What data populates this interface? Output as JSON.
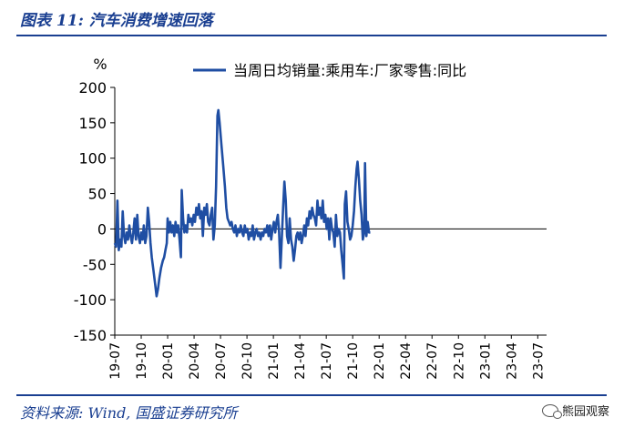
{
  "header": {
    "title": "图表 11:  汽车消费增速回落"
  },
  "footer": {
    "source": "资料来源:  Wind,  国盛证券研究所",
    "watermark": "熊园观察"
  },
  "chart_data": {
    "type": "line",
    "ylabel": "%",
    "ylim": [
      -150,
      200
    ],
    "yticks": [
      "200",
      "150",
      "100",
      "50",
      "0",
      "-50",
      "-100",
      "-150"
    ],
    "xticks": [
      "19-07",
      "19-10",
      "20-01",
      "20-04",
      "20-07",
      "20-10",
      "21-01",
      "21-04",
      "21-07",
      "21-10",
      "22-01",
      "22-04",
      "22-07",
      "22-10",
      "23-01",
      "23-04",
      "23-07"
    ],
    "x_range_months": [
      "19-07",
      "23-08"
    ],
    "series": [
      {
        "name": "当周日均销量:乘用车:厂家零售:同比",
        "color": "#1f4ea3",
        "points": [
          [
            0,
            -20
          ],
          [
            0.15,
            -25
          ],
          [
            0.3,
            40
          ],
          [
            0.45,
            -30
          ],
          [
            0.6,
            -15
          ],
          [
            0.75,
            -25
          ],
          [
            0.9,
            25
          ],
          [
            1.05,
            -10
          ],
          [
            1.2,
            -20
          ],
          [
            1.35,
            -5
          ],
          [
            1.5,
            -15
          ],
          [
            1.65,
            5
          ],
          [
            1.8,
            -10
          ],
          [
            1.95,
            -20
          ],
          [
            2.1,
            -5
          ],
          [
            2.25,
            15
          ],
          [
            2.4,
            -15
          ],
          [
            2.55,
            20
          ],
          [
            2.7,
            -10
          ],
          [
            2.85,
            -20
          ],
          [
            3.0,
            -5
          ],
          [
            3.15,
            -15
          ],
          [
            3.3,
            5
          ],
          [
            3.45,
            -20
          ],
          [
            3.6,
            -10
          ],
          [
            3.75,
            30
          ],
          [
            3.9,
            10
          ],
          [
            4.05,
            -20
          ],
          [
            4.2,
            -40
          ],
          [
            4.4,
            -60
          ],
          [
            4.6,
            -80
          ],
          [
            4.75,
            -95
          ],
          [
            4.9,
            -85
          ],
          [
            5.05,
            -70
          ],
          [
            5.25,
            -55
          ],
          [
            5.45,
            -45
          ],
          [
            5.6,
            -40
          ],
          [
            5.75,
            -30
          ],
          [
            5.9,
            -20
          ],
          [
            6.0,
            15
          ],
          [
            6.15,
            -5
          ],
          [
            6.3,
            10
          ],
          [
            6.45,
            -5
          ],
          [
            6.6,
            5
          ],
          [
            6.75,
            -10
          ],
          [
            6.9,
            10
          ],
          [
            7.05,
            -5
          ],
          [
            7.2,
            5
          ],
          [
            7.35,
            -15
          ],
          [
            7.5,
            -40
          ],
          [
            7.6,
            55
          ],
          [
            7.75,
            15
          ],
          [
            7.9,
            -5
          ],
          [
            8.05,
            5
          ],
          [
            8.2,
            -5
          ],
          [
            8.35,
            20
          ],
          [
            8.5,
            10
          ],
          [
            8.65,
            15
          ],
          [
            8.8,
            5
          ],
          [
            8.95,
            20
          ],
          [
            9.1,
            10
          ],
          [
            9.25,
            30
          ],
          [
            9.4,
            20
          ],
          [
            9.55,
            35
          ],
          [
            9.7,
            15
          ],
          [
            9.85,
            25
          ],
          [
            10.0,
            -10
          ],
          [
            10.15,
            30
          ],
          [
            10.3,
            20
          ],
          [
            10.45,
            35
          ],
          [
            10.6,
            10
          ],
          [
            10.75,
            5
          ],
          [
            10.9,
            20
          ],
          [
            11.05,
            30
          ],
          [
            11.2,
            -15
          ],
          [
            11.35,
            5
          ],
          [
            11.5,
            60
          ],
          [
            11.65,
            160
          ],
          [
            11.75,
            168
          ],
          [
            11.9,
            150
          ],
          [
            12.1,
            120
          ],
          [
            12.3,
            90
          ],
          [
            12.5,
            60
          ],
          [
            12.65,
            30
          ],
          [
            12.8,
            15
          ],
          [
            12.95,
            10
          ],
          [
            13.1,
            5
          ],
          [
            13.25,
            10
          ],
          [
            13.4,
            0
          ],
          [
            13.55,
            -5
          ],
          [
            13.7,
            5
          ],
          [
            13.85,
            -10
          ],
          [
            14.0,
            0
          ],
          [
            14.15,
            -5
          ],
          [
            14.3,
            5
          ],
          [
            14.45,
            -5
          ],
          [
            14.6,
            -10
          ],
          [
            14.75,
            5
          ],
          [
            14.9,
            -5
          ],
          [
            15.05,
            0
          ],
          [
            15.2,
            -15
          ],
          [
            15.35,
            -5
          ],
          [
            15.5,
            -10
          ],
          [
            15.65,
            5
          ],
          [
            15.8,
            -15
          ],
          [
            15.95,
            -5
          ],
          [
            16.1,
            0
          ],
          [
            16.25,
            -10
          ],
          [
            16.4,
            -5
          ],
          [
            16.55,
            -15
          ],
          [
            16.7,
            -5
          ],
          [
            16.85,
            -10
          ],
          [
            17.0,
            0
          ],
          [
            17.15,
            -5
          ],
          [
            17.3,
            5
          ],
          [
            17.45,
            -10
          ],
          [
            17.6,
            5
          ],
          [
            17.75,
            -15
          ],
          [
            17.9,
            0
          ],
          [
            18.05,
            10
          ],
          [
            18.2,
            -5
          ],
          [
            18.35,
            10
          ],
          [
            18.5,
            20
          ],
          [
            18.65,
            -5
          ],
          [
            18.8,
            -55
          ],
          [
            18.95,
            -15
          ],
          [
            19.1,
            30
          ],
          [
            19.25,
            67
          ],
          [
            19.4,
            40
          ],
          [
            19.55,
            -10
          ],
          [
            19.7,
            -20
          ],
          [
            19.85,
            15
          ],
          [
            20.0,
            -15
          ],
          [
            20.15,
            -25
          ],
          [
            20.3,
            -45
          ],
          [
            20.45,
            -30
          ],
          [
            20.6,
            -10
          ],
          [
            20.75,
            -5
          ],
          [
            20.9,
            -15
          ],
          [
            21.05,
            -5
          ],
          [
            21.2,
            -20
          ],
          [
            21.35,
            -10
          ],
          [
            21.5,
            5
          ],
          [
            21.65,
            -10
          ],
          [
            21.8,
            15
          ],
          [
            21.95,
            5
          ],
          [
            22.1,
            25
          ],
          [
            22.25,
            15
          ],
          [
            22.4,
            30
          ],
          [
            22.55,
            20
          ],
          [
            22.7,
            15
          ],
          [
            22.85,
            5
          ],
          [
            23.0,
            40
          ],
          [
            23.15,
            20
          ],
          [
            23.3,
            30
          ],
          [
            23.45,
            15
          ],
          [
            23.6,
            40
          ],
          [
            23.75,
            10
          ],
          [
            23.9,
            20
          ],
          [
            24.05,
            0
          ],
          [
            24.2,
            15
          ],
          [
            24.35,
            -15
          ],
          [
            24.5,
            15
          ],
          [
            24.65,
            0
          ],
          [
            24.8,
            -5
          ],
          [
            24.95,
            -25
          ],
          [
            25.1,
            20
          ],
          [
            25.25,
            -10
          ],
          [
            25.4,
            0
          ],
          [
            25.55,
            -5
          ],
          [
            25.7,
            -30
          ],
          [
            25.85,
            -50
          ],
          [
            26.0,
            -70
          ],
          [
            26.1,
            35
          ],
          [
            26.25,
            53
          ],
          [
            26.4,
            10
          ],
          [
            26.55,
            0
          ],
          [
            26.7,
            -15
          ],
          [
            26.85,
            -10
          ],
          [
            27.0,
            5
          ],
          [
            27.15,
            25
          ],
          [
            27.3,
            60
          ],
          [
            27.45,
            85
          ],
          [
            27.55,
            95
          ],
          [
            27.7,
            70
          ],
          [
            27.85,
            40
          ],
          [
            28.0,
            20
          ],
          [
            28.15,
            -15
          ],
          [
            28.3,
            -5
          ],
          [
            28.4,
            93
          ],
          [
            28.55,
            -10
          ],
          [
            28.7,
            10
          ],
          [
            28.85,
            -5
          ],
          [
            29.0,
            -5
          ]
        ]
      }
    ]
  }
}
